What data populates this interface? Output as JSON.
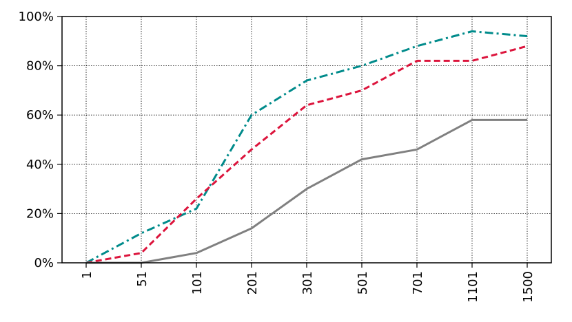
{
  "chart_data": {
    "type": "line",
    "title": "",
    "xlabel": "",
    "ylabel": "",
    "categories": [
      "1",
      "51",
      "101",
      "201",
      "301",
      "501",
      "701",
      "1101",
      "1500"
    ],
    "y_tick_labels": [
      "0%",
      "20%",
      "40%",
      "60%",
      "80%",
      "100%"
    ],
    "ylim": [
      0,
      100
    ],
    "grid": true,
    "legend": "none",
    "series": [
      {
        "style": "dashdot",
        "color": "#008b8b",
        "values": [
          0,
          12,
          22,
          60,
          74,
          80,
          88,
          94,
          92
        ]
      },
      {
        "style": "dashed",
        "color": "#dc143c",
        "values": [
          0,
          4,
          26,
          46,
          64,
          70,
          82,
          82,
          88
        ]
      },
      {
        "style": "solid",
        "color": "#808080",
        "values": [
          0,
          0,
          4,
          14,
          30,
          42,
          46,
          58,
          58
        ]
      }
    ]
  }
}
